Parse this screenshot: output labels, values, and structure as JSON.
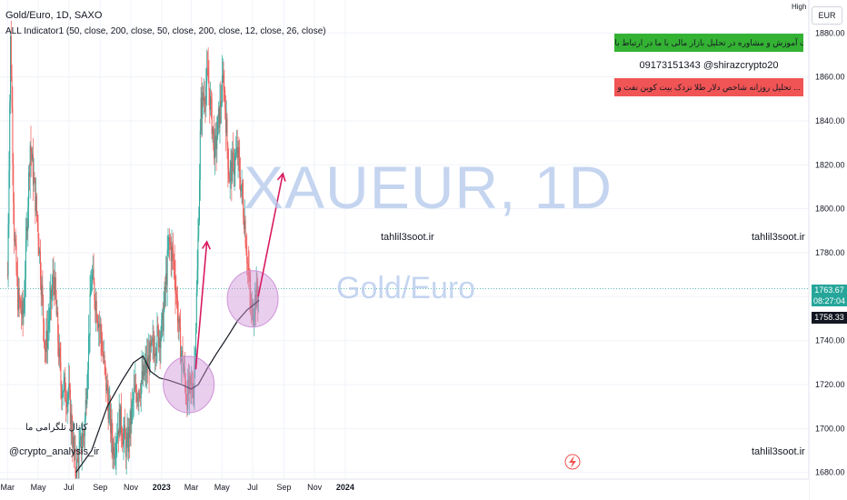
{
  "header": {
    "title": "Gold/Euro, 1D, SAXO",
    "indicator": "ALL Indicator1 (50, close, 200, close, 50, close, 200, close, 12, close, 26, close)"
  },
  "toolbar": {
    "currency": "EUR",
    "high_label": "High"
  },
  "watermark": {
    "symbol": "XAUEUR, 1D",
    "name": "Gold/Euro"
  },
  "overlays": {
    "tahlil_1": "tahlil3soot.ir",
    "tahlil_2": "tahlil3soot.ir",
    "tahlil_3": "tahlil3soot.ir",
    "channel_text": "کانال تلگرامی ما",
    "channel_handle": "@crypto_analysis_ir"
  },
  "banner": {
    "line1": "جهت آموزش و مشاوره در تحلیل بازار مالی با ما در ارتباط باشید",
    "line2": "09173151343  @shirazcrypto20",
    "line3": "تحلیل روزانه شاخص دلار طلا نزدک بیت کوین نفت و ...",
    "colors": {
      "line1": "#34b233",
      "line3": "#f05454"
    }
  },
  "price_tags": {
    "last": "1763.67",
    "countdown": "08:27:04",
    "ma": "1758.33",
    "last_color": "#26a69a",
    "ma_color": "#131722"
  },
  "chart_data": {
    "type": "candlestick",
    "symbol": "XAUEUR",
    "interval": "1D",
    "x_tick_labels": [
      "Mar",
      "May",
      "Jul",
      "Sep",
      "Nov",
      "2023",
      "Mar",
      "May",
      "Jul",
      "Sep",
      "Nov",
      "2024"
    ],
    "y_ticks": [
      1680,
      1700,
      1720,
      1740,
      1760,
      1780,
      1800,
      1820,
      1840,
      1860,
      1880
    ],
    "ylim": [
      1677,
      1895
    ],
    "colors": {
      "up": "#26a69a",
      "down": "#ef5350",
      "ma": "#131722",
      "marker": "#d81b60",
      "circle": "#ce93d8"
    },
    "price_path": [
      [
        "2022-03-01",
        1770
      ],
      [
        "2022-03-07",
        1880
      ],
      [
        "2022-03-14",
        1790
      ],
      [
        "2022-03-21",
        1760
      ],
      [
        "2022-04-01",
        1750
      ],
      [
        "2022-04-15",
        1830
      ],
      [
        "2022-05-01",
        1790
      ],
      [
        "2022-05-15",
        1735
      ],
      [
        "2022-06-01",
        1770
      ],
      [
        "2022-06-15",
        1720
      ],
      [
        "2022-07-01",
        1715
      ],
      [
        "2022-07-14",
        1680
      ],
      [
        "2022-08-01",
        1700
      ],
      [
        "2022-08-15",
        1770
      ],
      [
        "2022-09-01",
        1745
      ],
      [
        "2022-09-27",
        1690
      ],
      [
        "2022-10-10",
        1705
      ],
      [
        "2022-10-24",
        1690
      ],
      [
        "2022-11-07",
        1715
      ],
      [
        "2022-11-21",
        1720
      ],
      [
        "2022-12-05",
        1730
      ],
      [
        "2022-12-20",
        1740
      ],
      [
        "2023-01-02",
        1745
      ],
      [
        "2023-01-16",
        1785
      ],
      [
        "2023-01-26",
        1775
      ],
      [
        "2023-02-06",
        1740
      ],
      [
        "2023-02-20",
        1715
      ],
      [
        "2023-03-06",
        1720
      ],
      [
        "2023-03-13",
        1770
      ],
      [
        "2023-03-20",
        1845
      ],
      [
        "2023-04-03",
        1860
      ],
      [
        "2023-04-17",
        1825
      ],
      [
        "2023-05-04",
        1860
      ],
      [
        "2023-05-15",
        1815
      ],
      [
        "2023-06-01",
        1825
      ],
      [
        "2023-06-15",
        1795
      ],
      [
        "2023-06-28",
        1752
      ],
      [
        "2023-07-07",
        1760
      ],
      [
        "2023-07-14",
        1763.67
      ]
    ],
    "ma_line": [
      [
        "2022-07-15",
        1680
      ],
      [
        "2022-08-15",
        1690
      ],
      [
        "2022-09-15",
        1710
      ],
      [
        "2022-10-15",
        1722
      ],
      [
        "2022-11-06",
        1730
      ],
      [
        "2022-11-25",
        1733
      ],
      [
        "2022-12-10",
        1726
      ],
      [
        "2022-12-28",
        1723
      ],
      [
        "2023-01-15",
        1722
      ],
      [
        "2023-02-10",
        1720
      ],
      [
        "2023-03-01",
        1718
      ],
      [
        "2023-03-15",
        1720
      ],
      [
        "2023-04-01",
        1727
      ],
      [
        "2023-04-20",
        1734
      ],
      [
        "2023-05-10",
        1741
      ],
      [
        "2023-06-01",
        1749
      ],
      [
        "2023-06-20",
        1754
      ],
      [
        "2023-07-14",
        1758.33
      ]
    ],
    "annotations": [
      {
        "type": "circle",
        "center": [
          "2023-02-24",
          1720
        ]
      },
      {
        "type": "circle",
        "center": [
          "2023-07-01",
          1759
        ]
      },
      {
        "type": "arrow",
        "from": [
          "2023-03-10",
          1727
        ],
        "to": [
          "2023-04-01",
          1785
        ]
      },
      {
        "type": "arrow",
        "from": [
          "2023-07-12",
          1760
        ],
        "to": [
          "2023-08-30",
          1816
        ]
      }
    ],
    "last_price": 1763.67,
    "ma_last": 1758.33
  }
}
